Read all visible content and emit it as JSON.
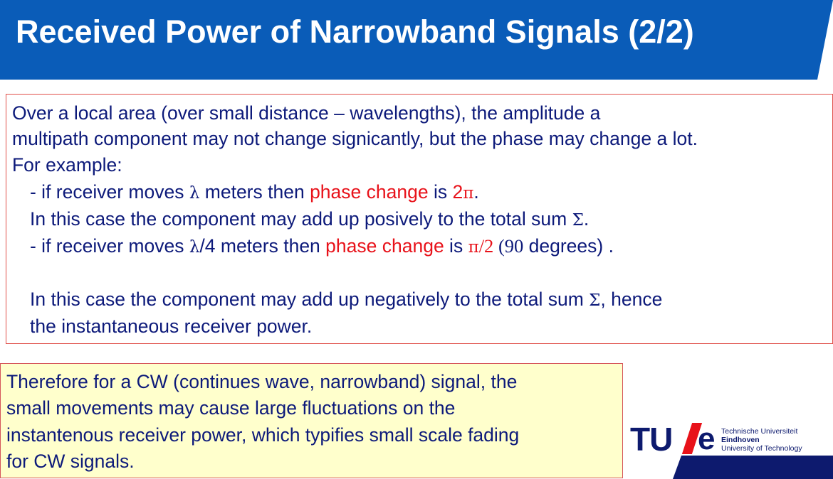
{
  "title": "Received Power of Narrowband Signals (2/2)",
  "main": {
    "line1": "Over a local area (over small distance – wavelengths), the amplitude a",
    "line2": "multipath component may not change signicantly, but the phase may change a lot.",
    "line3": "For example:",
    "line4": {
      "pre": "- if receiver moves  ",
      "lambda": "λ",
      "mid": " meters then ",
      "phase": "phase change",
      "is": " is ",
      "two": "2",
      "pi": "π",
      "end": "."
    },
    "line5": {
      "pre": "In this case the component may add up posively to the total sum ",
      "sigma": "Σ",
      "end": "."
    },
    "line6": {
      "pre": "- if receiver moves  ",
      "lambda": "λ",
      "mid": "/4 meters then ",
      "phase": "phase change",
      "is": " is ",
      "pi": "π",
      "frac": "/2",
      "paren": " (90",
      "end": " degrees) ."
    },
    "line7": {
      "pre": "In this case the component may add up negatively to the total sum ",
      "sigma": "Σ",
      "end": ", hence"
    },
    "line8": "the instantaneous receiver power."
  },
  "conclusion": {
    "line1": "Therefore for a CW (continues wave, narrowband) signal, the",
    "line2": "small movements may cause large fluctuations on the",
    "line3": "instantenous receiver power, which typifies small scale fading",
    "line4": "for CW signals."
  },
  "logo": {
    "tu": "TU",
    "e": "e",
    "line1": "Technische Universiteit",
    "line2": "Eindhoven",
    "line3": "University of Technology"
  },
  "colors": {
    "title_bar": "#0a5cb8",
    "body_text": "#0d1a7a",
    "highlight": "#e8121a",
    "conclusion_bg": "#ffffcc",
    "logo_navy": "#0d1a6e"
  }
}
